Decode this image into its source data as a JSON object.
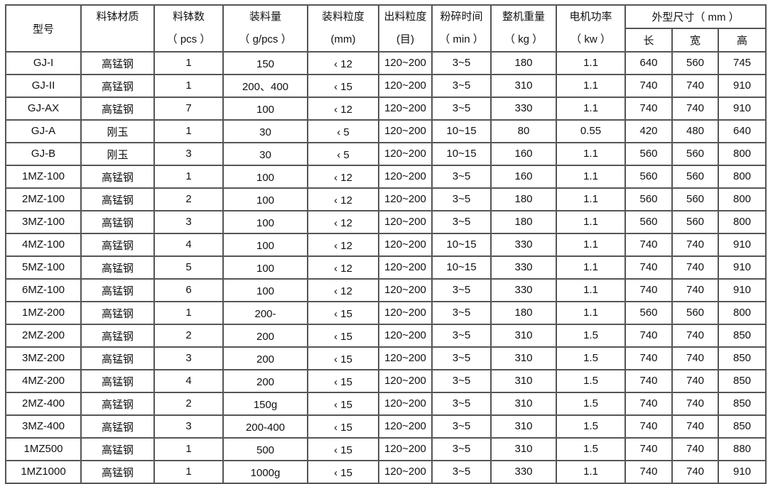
{
  "headers": {
    "model": "型号",
    "material": "料钵材质",
    "bowls": "料钵数",
    "bowls_unit": "（ pcs ）",
    "load": "装料量",
    "load_unit": "（ g/pcs ）",
    "feed": "装料粒度",
    "feed_unit": "(mm)",
    "output": "出料粒度",
    "output_unit": "(目)",
    "time": "粉碎时间",
    "time_unit": "（ min ）",
    "weight": "整机重量",
    "weight_unit": "（ kg ）",
    "power": "电机功率",
    "power_unit": "（ kw ）",
    "dims": "外型尺寸（ mm ）",
    "length": "长",
    "width": "宽",
    "height": "高"
  },
  "rows": [
    [
      "GJ-I",
      "高锰钢",
      "1",
      "150",
      "‹ 12",
      "120~200",
      "3~5",
      "180",
      "1.1",
      "640",
      "560",
      "745"
    ],
    [
      "GJ-II",
      "高锰钢",
      "1",
      "200、400",
      "‹ 15",
      "120~200",
      "3~5",
      "310",
      "1.1",
      "740",
      "740",
      "910"
    ],
    [
      "GJ-AX",
      "高锰钢",
      "7",
      "100",
      "‹ 12",
      "120~200",
      "3~5",
      "330",
      "1.1",
      "740",
      "740",
      "910"
    ],
    [
      "GJ-A",
      "刚玉",
      "1",
      "30",
      "‹ 5",
      "120~200",
      "10~15",
      "80",
      "0.55",
      "420",
      "480",
      "640"
    ],
    [
      "GJ-B",
      "刚玉",
      "3",
      "30",
      "‹ 5",
      "120~200",
      "10~15",
      "160",
      "1.1",
      "560",
      "560",
      "800"
    ],
    [
      "1MZ-100",
      "高锰钢",
      "1",
      "100",
      "‹ 12",
      "120~200",
      "3~5",
      "160",
      "1.1",
      "560",
      "560",
      "800"
    ],
    [
      "2MZ-100",
      "高锰钢",
      "2",
      "100",
      "‹ 12",
      "120~200",
      "3~5",
      "180",
      "1.1",
      "560",
      "560",
      "800"
    ],
    [
      "3MZ-100",
      "高锰钢",
      "3",
      "100",
      "‹ 12",
      "120~200",
      "3~5",
      "180",
      "1.1",
      "560",
      "560",
      "800"
    ],
    [
      "4MZ-100",
      "高锰钢",
      "4",
      "100",
      "‹ 12",
      "120~200",
      "10~15",
      "330",
      "1.1",
      "740",
      "740",
      "910"
    ],
    [
      "5MZ-100",
      "高锰钢",
      "5",
      "100",
      "‹ 12",
      "120~200",
      "10~15",
      "330",
      "1.1",
      "740",
      "740",
      "910"
    ],
    [
      "6MZ-100",
      "高锰钢",
      "6",
      "100",
      "‹ 12",
      "120~200",
      "3~5",
      "330",
      "1.1",
      "740",
      "740",
      "910"
    ],
    [
      "1MZ-200",
      "高锰钢",
      "1",
      "200-",
      "‹ 15",
      "120~200",
      "3~5",
      "180",
      "1.1",
      "560",
      "560",
      "800"
    ],
    [
      "2MZ-200",
      "高锰钢",
      "2",
      "200",
      "‹ 15",
      "120~200",
      "3~5",
      "310",
      "1.5",
      "740",
      "740",
      "850"
    ],
    [
      "3MZ-200",
      "高锰钢",
      "3",
      "200",
      "‹ 15",
      "120~200",
      "3~5",
      "310",
      "1.5",
      "740",
      "740",
      "850"
    ],
    [
      "4MZ-200",
      "高锰钢",
      "4",
      "200",
      "‹ 15",
      "120~200",
      "3~5",
      "310",
      "1.5",
      "740",
      "740",
      "850"
    ],
    [
      "2MZ-400",
      "高锰钢",
      "2",
      "150g",
      "‹ 15",
      "120~200",
      "3~5",
      "310",
      "1.5",
      "740",
      "740",
      "850"
    ],
    [
      "3MZ-400",
      "高锰钢",
      "3",
      "200-400",
      "‹ 15",
      "120~200",
      "3~5",
      "310",
      "1.5",
      "740",
      "740",
      "850"
    ],
    [
      "1MZ500",
      "高锰钢",
      "1",
      "500",
      "‹ 15",
      "120~200",
      "3~5",
      "310",
      "1.5",
      "740",
      "740",
      "880"
    ],
    [
      "1MZ1000",
      "高锰钢",
      "1",
      "1000g",
      "‹ 15",
      "120~200",
      "3~5",
      "330",
      "1.1",
      "740",
      "740",
      "910"
    ]
  ]
}
